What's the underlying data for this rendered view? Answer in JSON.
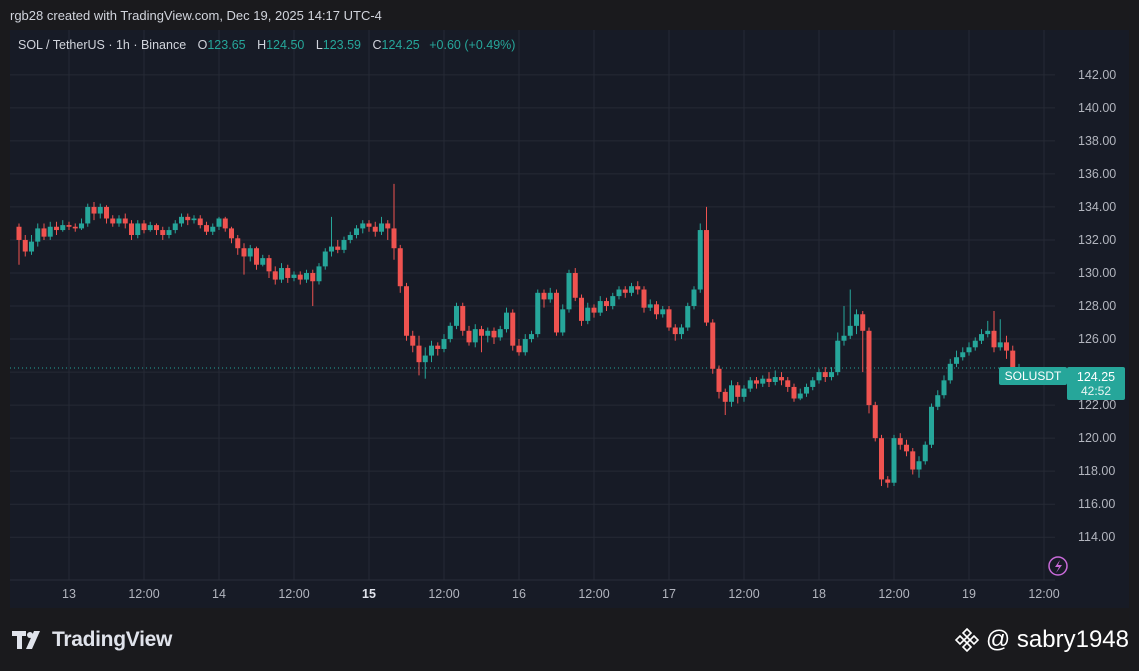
{
  "header": {
    "attribution": "rgb28 created with TradingView.com, Dec 19, 2025 14:17 UTC-4"
  },
  "legend": {
    "symbol": "SOL / TetherUS · 1h · Binance",
    "open_label": "O",
    "open": "123.65",
    "high_label": "H",
    "high": "124.50",
    "low_label": "L",
    "low": "123.59",
    "close_label": "C",
    "close": "124.25",
    "change": "+0.60 (+0.49%)"
  },
  "last_price": {
    "ticker": "SOLUSDT",
    "price": "124.25",
    "countdown": "42:52"
  },
  "footer": {
    "brand": "TradingView",
    "watermark": "@ sabry1948"
  },
  "icons": {
    "logo": "tradingview-logo-icon",
    "watermark": "binance-diamond-icon",
    "alert": "lightning-icon"
  },
  "colors": {
    "up": "#26a69a",
    "down": "#ef5350",
    "background": "#171b26",
    "grid": "#262a35",
    "axis_text": "#b2b5be"
  },
  "chart_data": {
    "type": "candlestick",
    "title": "SOL / TetherUS · 1h · Binance",
    "ylim": [
      112.5,
      143.2
    ],
    "y_ticks": [
      114,
      116,
      118,
      120,
      122,
      124,
      126,
      128,
      130,
      132,
      134,
      136,
      138,
      140,
      142
    ],
    "x_ticks": [
      {
        "label": "13",
        "hours": 0,
        "bold": false
      },
      {
        "label": "12:00",
        "hours": 12,
        "bold": false
      },
      {
        "label": "14",
        "hours": 24,
        "bold": false
      },
      {
        "label": "12:00",
        "hours": 36,
        "bold": false
      },
      {
        "label": "15",
        "hours": 48,
        "bold": true
      },
      {
        "label": "12:00",
        "hours": 60,
        "bold": false
      },
      {
        "label": "16",
        "hours": 72,
        "bold": false
      },
      {
        "label": "12:00",
        "hours": 84,
        "bold": false
      },
      {
        "label": "17",
        "hours": 96,
        "bold": false
      },
      {
        "label": "12:00",
        "hours": 108,
        "bold": false
      },
      {
        "label": "18",
        "hours": 120,
        "bold": false
      },
      {
        "label": "12:00",
        "hours": 132,
        "bold": false
      },
      {
        "label": "19",
        "hours": 144,
        "bold": false
      },
      {
        "label": "12:00",
        "hours": 156,
        "bold": false
      }
    ],
    "last_price": 124.25,
    "grid": true,
    "candles": [
      [
        132.8,
        132.0,
        133.0,
        130.5
      ],
      [
        132.0,
        131.3,
        132.3,
        131.0
      ],
      [
        131.3,
        131.9,
        132.3,
        131.1
      ],
      [
        131.9,
        132.7,
        133.0,
        131.6
      ],
      [
        132.7,
        132.2,
        133.0,
        132.0
      ],
      [
        132.2,
        132.8,
        133.1,
        132.0
      ],
      [
        132.8,
        132.6,
        133.1,
        132.3
      ],
      [
        132.6,
        132.9,
        133.2,
        132.5
      ],
      [
        132.9,
        132.8,
        133.1,
        132.6
      ],
      [
        132.8,
        132.7,
        133.0,
        132.5
      ],
      [
        132.7,
        133.0,
        133.3,
        132.6
      ],
      [
        133.0,
        134.0,
        134.2,
        132.8
      ],
      [
        134.0,
        133.6,
        134.3,
        133.2
      ],
      [
        133.6,
        134.0,
        134.2,
        133.3
      ],
      [
        134.0,
        133.3,
        134.1,
        133.0
      ],
      [
        133.3,
        133.0,
        133.5,
        132.8
      ],
      [
        133.0,
        133.3,
        133.5,
        132.8
      ],
      [
        133.3,
        133.0,
        133.6,
        132.7
      ],
      [
        133.0,
        132.3,
        133.2,
        132.0
      ],
      [
        132.3,
        133.0,
        133.2,
        132.1
      ],
      [
        133.0,
        132.6,
        133.2,
        132.4
      ],
      [
        132.6,
        132.9,
        133.1,
        132.5
      ],
      [
        132.9,
        132.6,
        133.0,
        132.3
      ],
      [
        132.6,
        132.3,
        132.8,
        132.0
      ],
      [
        132.3,
        132.6,
        132.8,
        132.1
      ],
      [
        132.6,
        133.0,
        133.2,
        132.4
      ],
      [
        133.0,
        133.4,
        133.6,
        132.8
      ],
      [
        133.4,
        133.2,
        133.6,
        132.9
      ],
      [
        133.2,
        133.3,
        133.5,
        133.0
      ],
      [
        133.3,
        132.9,
        133.5,
        132.7
      ],
      [
        132.9,
        132.5,
        133.1,
        132.3
      ],
      [
        132.5,
        132.8,
        133.0,
        132.3
      ],
      [
        132.8,
        133.3,
        133.4,
        132.6
      ],
      [
        133.3,
        132.7,
        133.4,
        132.5
      ],
      [
        132.7,
        132.1,
        132.8,
        131.8
      ],
      [
        132.1,
        131.5,
        132.3,
        131.1
      ],
      [
        131.5,
        131.0,
        131.8,
        129.9
      ],
      [
        131.0,
        131.5,
        131.7,
        130.7
      ],
      [
        131.5,
        130.5,
        131.6,
        130.2
      ],
      [
        130.5,
        130.9,
        131.1,
        130.4
      ],
      [
        130.9,
        130.1,
        131.1,
        129.7
      ],
      [
        130.1,
        129.6,
        130.4,
        129.3
      ],
      [
        129.6,
        130.3,
        130.6,
        129.4
      ],
      [
        130.3,
        129.7,
        130.5,
        129.4
      ],
      [
        129.7,
        129.9,
        130.1,
        129.5
      ],
      [
        129.9,
        129.6,
        130.1,
        129.3
      ],
      [
        129.6,
        130.0,
        130.2,
        129.4
      ],
      [
        130.0,
        129.5,
        130.2,
        128.0
      ],
      [
        129.5,
        130.4,
        130.6,
        129.3
      ],
      [
        130.4,
        131.3,
        131.5,
        130.2
      ],
      [
        131.3,
        131.6,
        133.4,
        131.0
      ],
      [
        131.6,
        131.4,
        132.0,
        131.2
      ],
      [
        131.4,
        132.0,
        132.2,
        131.2
      ],
      [
        132.0,
        132.3,
        132.5,
        131.8
      ],
      [
        132.3,
        132.7,
        132.9,
        132.1
      ],
      [
        132.7,
        133.0,
        133.2,
        132.4
      ],
      [
        133.0,
        132.8,
        133.2,
        132.5
      ],
      [
        132.8,
        132.5,
        133.1,
        132.2
      ],
      [
        132.5,
        133.0,
        133.4,
        132.3
      ],
      [
        133.0,
        132.7,
        133.2,
        132.0
      ],
      [
        132.7,
        131.5,
        135.4,
        130.8
      ],
      [
        131.5,
        129.2,
        131.7,
        128.8
      ],
      [
        129.2,
        126.2,
        129.4,
        125.9
      ],
      [
        126.2,
        125.6,
        126.5,
        125.2
      ],
      [
        125.6,
        124.6,
        126.2,
        123.8
      ],
      [
        124.6,
        125.0,
        125.5,
        123.6
      ],
      [
        125.0,
        125.6,
        125.9,
        124.6
      ],
      [
        125.6,
        125.4,
        125.8,
        125.0
      ],
      [
        125.4,
        126.0,
        126.3,
        125.2
      ],
      [
        126.0,
        126.8,
        127.0,
        125.8
      ],
      [
        126.8,
        128.0,
        128.2,
        126.6
      ],
      [
        128.0,
        126.5,
        128.2,
        126.2
      ],
      [
        126.5,
        125.8,
        126.8,
        125.6
      ],
      [
        125.8,
        126.6,
        126.9,
        125.5
      ],
      [
        126.6,
        126.2,
        126.8,
        125.2
      ],
      [
        126.2,
        126.5,
        126.7,
        125.8
      ],
      [
        126.5,
        126.1,
        126.7,
        125.7
      ],
      [
        126.1,
        126.6,
        126.8,
        125.9
      ],
      [
        126.6,
        127.6,
        127.9,
        126.4
      ],
      [
        127.6,
        125.6,
        127.8,
        125.3
      ],
      [
        125.6,
        125.2,
        126.0,
        125.0
      ],
      [
        125.2,
        126.0,
        126.3,
        125.0
      ],
      [
        126.0,
        126.3,
        126.5,
        125.8
      ],
      [
        126.3,
        128.8,
        129.0,
        126.1
      ],
      [
        128.8,
        128.4,
        129.0,
        127.9
      ],
      [
        128.4,
        128.8,
        129.1,
        128.2
      ],
      [
        128.8,
        126.4,
        129.0,
        126.2
      ],
      [
        126.4,
        127.8,
        128.1,
        126.2
      ],
      [
        127.8,
        130.0,
        130.2,
        127.6
      ],
      [
        130.0,
        128.5,
        130.3,
        128.3
      ],
      [
        128.5,
        127.1,
        128.7,
        126.8
      ],
      [
        127.1,
        127.9,
        128.2,
        126.9
      ],
      [
        127.9,
        127.6,
        128.1,
        127.3
      ],
      [
        127.6,
        128.3,
        128.6,
        127.4
      ],
      [
        128.3,
        128.0,
        128.5,
        127.7
      ],
      [
        128.0,
        128.6,
        128.8,
        127.8
      ],
      [
        128.6,
        129.0,
        129.2,
        128.4
      ],
      [
        129.0,
        128.8,
        129.2,
        128.5
      ],
      [
        128.8,
        129.2,
        129.4,
        128.6
      ],
      [
        129.2,
        129.0,
        129.5,
        128.7
      ],
      [
        129.0,
        127.9,
        129.2,
        127.6
      ],
      [
        127.9,
        128.1,
        128.4,
        127.7
      ],
      [
        128.1,
        127.5,
        128.3,
        127.2
      ],
      [
        127.5,
        127.8,
        128.0,
        127.3
      ],
      [
        127.8,
        126.7,
        128.0,
        126.5
      ],
      [
        126.7,
        126.3,
        126.9,
        125.9
      ],
      [
        126.3,
        126.7,
        126.9,
        126.0
      ],
      [
        126.7,
        128.0,
        128.2,
        126.5
      ],
      [
        128.0,
        129.0,
        129.2,
        127.8
      ],
      [
        129.0,
        132.6,
        133.0,
        128.8
      ],
      [
        132.6,
        127.0,
        134.0,
        126.8
      ],
      [
        127.0,
        124.2,
        127.2,
        123.9
      ],
      [
        124.2,
        122.8,
        124.4,
        122.4
      ],
      [
        122.8,
        122.2,
        123.0,
        121.4
      ],
      [
        122.2,
        123.2,
        123.5,
        121.9
      ],
      [
        123.2,
        122.5,
        123.4,
        122.1
      ],
      [
        122.5,
        123.0,
        123.2,
        122.2
      ],
      [
        123.0,
        123.5,
        123.7,
        122.8
      ],
      [
        123.5,
        123.3,
        123.7,
        123.0
      ],
      [
        123.3,
        123.6,
        123.8,
        123.1
      ],
      [
        123.6,
        123.4,
        124.0,
        123.1
      ],
      [
        123.4,
        123.7,
        124.1,
        123.2
      ],
      [
        123.7,
        123.5,
        124.0,
        123.2
      ],
      [
        123.5,
        123.1,
        123.7,
        122.8
      ],
      [
        123.1,
        122.4,
        123.3,
        122.2
      ],
      [
        122.4,
        122.7,
        123.0,
        122.3
      ],
      [
        122.7,
        123.1,
        123.3,
        122.5
      ],
      [
        123.1,
        123.5,
        123.7,
        122.9
      ],
      [
        123.5,
        124.0,
        124.2,
        123.3
      ],
      [
        124.0,
        123.7,
        124.3,
        123.4
      ],
      [
        123.7,
        124.0,
        124.3,
        123.5
      ],
      [
        124.0,
        125.9,
        126.4,
        123.8
      ],
      [
        125.9,
        126.2,
        128.0,
        125.6
      ],
      [
        126.2,
        126.8,
        129.0,
        126.0
      ],
      [
        126.8,
        127.5,
        127.8,
        126.3
      ],
      [
        127.5,
        126.5,
        127.7,
        124.0
      ],
      [
        126.5,
        122.0,
        126.7,
        121.5
      ],
      [
        122.0,
        120.0,
        122.2,
        119.8
      ],
      [
        120.0,
        117.5,
        120.2,
        117.1
      ],
      [
        117.5,
        117.3,
        117.7,
        117.0
      ],
      [
        117.3,
        120.0,
        120.2,
        117.1
      ],
      [
        120.0,
        119.6,
        120.3,
        119.3
      ],
      [
        119.6,
        119.2,
        119.9,
        118.9
      ],
      [
        119.2,
        118.1,
        119.4,
        117.8
      ],
      [
        118.1,
        118.6,
        118.9,
        117.6
      ],
      [
        118.6,
        119.6,
        119.8,
        118.4
      ],
      [
        119.6,
        121.9,
        122.1,
        119.4
      ],
      [
        121.9,
        122.6,
        122.9,
        121.7
      ],
      [
        122.6,
        123.5,
        123.8,
        122.4
      ],
      [
        123.5,
        124.5,
        124.8,
        123.3
      ],
      [
        124.5,
        124.9,
        125.3,
        124.3
      ],
      [
        124.9,
        125.2,
        125.5,
        124.7
      ],
      [
        125.2,
        125.5,
        125.8,
        125.0
      ],
      [
        125.5,
        125.9,
        126.1,
        125.3
      ],
      [
        125.9,
        126.3,
        126.6,
        125.7
      ],
      [
        126.3,
        126.5,
        127.1,
        126.1
      ],
      [
        126.5,
        125.5,
        127.7,
        125.2
      ],
      [
        125.5,
        125.8,
        127.2,
        125.3
      ],
      [
        125.8,
        125.3,
        126.2,
        124.8
      ],
      [
        125.3,
        123.65,
        125.6,
        123.4
      ],
      [
        123.65,
        124.25,
        124.5,
        123.59
      ]
    ]
  }
}
